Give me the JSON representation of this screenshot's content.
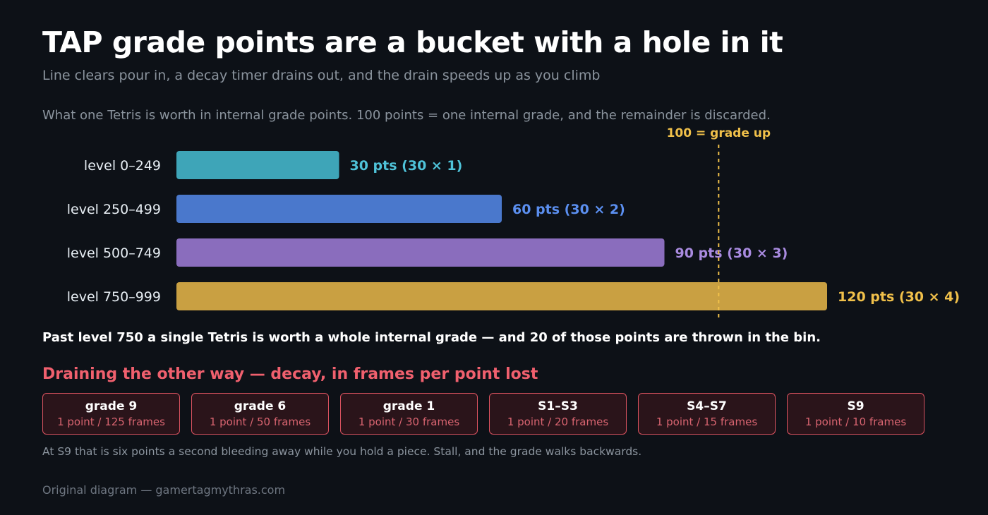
{
  "header": {
    "title": "TAP grade points are a bucket with a hole in it",
    "subtitle": "Line clears pour in, a decay timer drains out, and the drain speeds up as you climb"
  },
  "intro": "What one Tetris is worth in internal grade points. 100 points = one internal grade, and the remainder is discarded.",
  "chart_data": {
    "type": "bar",
    "orientation": "horizontal",
    "categories": [
      "level 0–249",
      "level 250–499",
      "level 500–749",
      "level 750–999"
    ],
    "values": [
      30,
      60,
      90,
      120
    ],
    "value_labels": [
      "30 pts (30 × 1)",
      "60 pts (30 × 2)",
      "90 pts (30 × 3)",
      "120 pts (30 × 4)"
    ],
    "colors": [
      "#3ea5b8",
      "#4a78cc",
      "#8a6dbd",
      "#c9a042"
    ],
    "label_colors": [
      "#4fc3d9",
      "#5b8ff0",
      "#a98be0",
      "#f0c04a"
    ],
    "xlim": [
      0,
      120
    ],
    "grid": false,
    "reference_line": {
      "value": 100,
      "label": "100 = grade up",
      "color": "#f0c04a"
    }
  },
  "takeaway": "Past level 750 a single Tetris is worth a whole internal grade — and 20 of those points are thrown in the bin.",
  "decay": {
    "heading": "Draining the other way — decay, in frames per point lost",
    "cards": [
      {
        "grade": "grade 9",
        "rate": "1 point / 125 frames"
      },
      {
        "grade": "grade 6",
        "rate": "1 point / 50 frames"
      },
      {
        "grade": "grade 1",
        "rate": "1 point / 30 frames"
      },
      {
        "grade": "S1–S3",
        "rate": "1 point / 20 frames"
      },
      {
        "grade": "S4–S7",
        "rate": "1 point / 15 frames"
      },
      {
        "grade": "S9",
        "rate": "1 point / 10 frames"
      }
    ],
    "note": "At S9 that is six points a second bleeding away while you hold a piece. Stall, and the grade walks backwards."
  },
  "source": "Original diagram — gamertagmythras.com"
}
